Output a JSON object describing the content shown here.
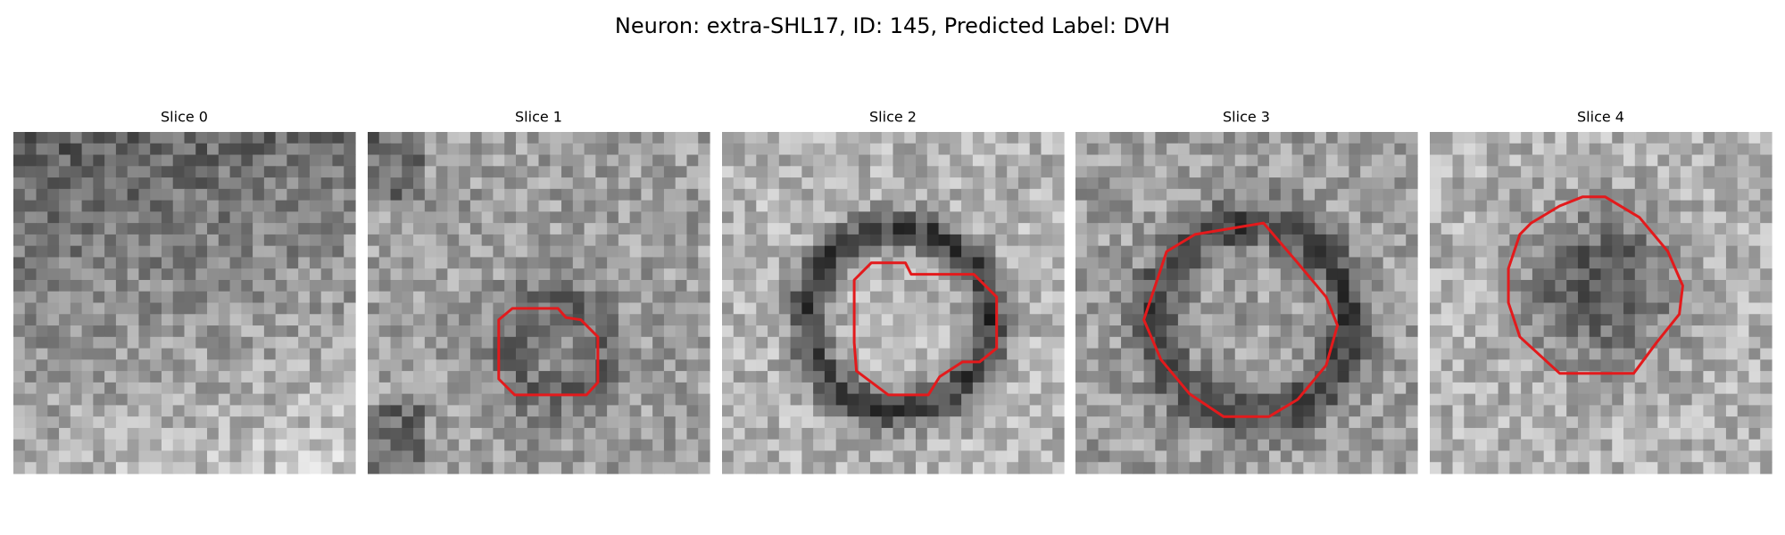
{
  "title": "Neuron: extra-SHL17, ID: 145, Predicted Label: DVH",
  "panels": [
    {
      "title": "Slice 0"
    },
    {
      "title": "Slice 1"
    },
    {
      "title": "Slice 2"
    },
    {
      "title": "Slice 3"
    },
    {
      "title": "Slice 4"
    }
  ]
}
